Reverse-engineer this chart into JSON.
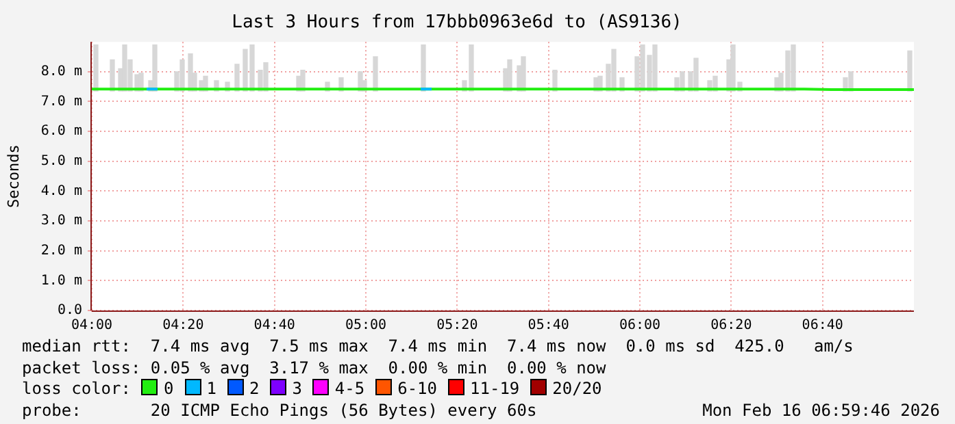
{
  "chart_data": {
    "type": "line",
    "title": "Last 3 Hours from 17bbb0963e6d to (AS9136)",
    "ylabel": "Seconds",
    "legend_title": "loss color:",
    "legend": "bottom",
    "grid": true,
    "marker": "none",
    "line_style": "solid",
    "xlim": [
      4,
      7
    ],
    "xticks": [
      {
        "value": 4,
        "label": "04:00"
      },
      {
        "value": 4.3333,
        "label": "04:20"
      },
      {
        "value": 4.6667,
        "label": "04:40"
      },
      {
        "value": 5,
        "label": "05:00"
      },
      {
        "value": 5.3333,
        "label": "05:20"
      },
      {
        "value": 5.6667,
        "label": "05:40"
      },
      {
        "value": 6,
        "label": "06:00"
      },
      {
        "value": 6.3333,
        "label": "06:20"
      },
      {
        "value": 6.6667,
        "label": "06:40"
      }
    ],
    "ylim": [
      0,
      9
    ],
    "yticks": [
      {
        "value": 0,
        "label": "0.0"
      },
      {
        "value": 1,
        "label": "1.0 m"
      },
      {
        "value": 2,
        "label": "2.0 m"
      },
      {
        "value": 3,
        "label": "3.0 m"
      },
      {
        "value": 4,
        "label": "4.0 m"
      },
      {
        "value": 5,
        "label": "5.0 m"
      },
      {
        "value": 6,
        "label": "6.0 m"
      },
      {
        "value": 7,
        "label": "7.0 m"
      },
      {
        "value": 8,
        "label": "8.0 m"
      }
    ],
    "series": [
      {
        "type": "bar",
        "color": "#d7d7d7",
        "x": [
          4.015,
          4.075,
          4.105,
          4.12,
          4.14,
          4.165,
          4.18,
          4.215,
          4.23,
          4.31,
          4.33,
          4.36,
          4.375,
          4.4,
          4.415,
          4.455,
          4.495,
          4.53,
          4.56,
          4.585,
          4.615,
          4.635,
          4.755,
          4.77,
          4.86,
          4.91,
          4.98,
          4.995,
          5.035,
          5.21,
          5.36,
          5.385,
          5.51,
          5.525,
          5.56,
          5.575,
          5.69,
          5.84,
          5.855,
          5.885,
          5.905,
          5.935,
          5.99,
          6.01,
          6.035,
          6.055,
          6.135,
          6.155,
          6.185,
          6.205,
          6.255,
          6.275,
          6.325,
          6.34,
          6.365,
          6.5,
          6.515,
          6.54,
          6.56,
          6.75,
          6.77,
          6.985
        ],
        "base": [
          7.35,
          7.35,
          7.35,
          7.35,
          7.35,
          7.35,
          7.35,
          7.35,
          7.35,
          7.35,
          7.35,
          7.35,
          7.35,
          7.35,
          7.35,
          7.35,
          7.35,
          7.35,
          7.35,
          7.35,
          7.35,
          7.35,
          7.35,
          7.35,
          7.35,
          7.35,
          7.35,
          7.35,
          7.35,
          7.35,
          7.35,
          7.35,
          7.35,
          7.35,
          7.35,
          7.35,
          7.35,
          7.35,
          7.35,
          7.35,
          7.35,
          7.35,
          7.35,
          7.35,
          7.35,
          7.35,
          7.35,
          7.35,
          7.35,
          7.35,
          7.35,
          7.35,
          7.35,
          7.35,
          7.35,
          7.35,
          7.35,
          7.35,
          7.35,
          7.35,
          7.35,
          7.35
        ],
        "values": [
          1.55,
          1.05,
          0.75,
          1.55,
          1.05,
          0.55,
          0.6,
          0.35,
          1.55,
          0.65,
          1.05,
          1.25,
          0.6,
          0.35,
          0.5,
          0.35,
          0.3,
          0.9,
          1.4,
          1.55,
          0.7,
          0.95,
          0.5,
          0.7,
          0.3,
          0.45,
          0.65,
          0.35,
          1.15,
          1.55,
          0.35,
          1.55,
          0.75,
          1.05,
          0.85,
          1.15,
          0.7,
          0.45,
          0.5,
          0.9,
          1.4,
          0.45,
          1.15,
          1.55,
          1.2,
          1.55,
          0.45,
          0.65,
          0.65,
          1.1,
          0.35,
          0.5,
          1.05,
          1.55,
          0.3,
          0.45,
          0.6,
          1.35,
          1.55,
          0.45,
          0.65,
          1.35
        ]
      },
      {
        "name": "0",
        "color": "#22ee11",
        "x": [
          4,
          4.1,
          4.2,
          4.3,
          4.4,
          4.5,
          4.6,
          4.7,
          4.8,
          4.9,
          5,
          5.1,
          5.2,
          5.3,
          5.4,
          5.5,
          5.6,
          5.7,
          5.8,
          5.9,
          6,
          6.1,
          6.2,
          6.3,
          6.4,
          6.5,
          6.6,
          6.7,
          6.8,
          6.9,
          7
        ],
        "values": [
          7.42,
          7.42,
          7.42,
          7.42,
          7.42,
          7.42,
          7.42,
          7.42,
          7.42,
          7.42,
          7.42,
          7.42,
          7.42,
          7.42,
          7.42,
          7.42,
          7.42,
          7.42,
          7.42,
          7.42,
          7.42,
          7.42,
          7.42,
          7.42,
          7.42,
          7.42,
          7.42,
          7.4,
          7.4,
          7.4,
          7.4
        ]
      },
      {
        "name": "1",
        "color": "#00b8ff",
        "x": [
          4.2,
          4.24,
          4.7,
          5.2,
          5.24
        ],
        "values": [
          7.42,
          7.42,
          null,
          7.42,
          7.42
        ]
      },
      {
        "name": "2",
        "color": "#0059ff"
      },
      {
        "name": "3",
        "color": "#7e00ff"
      },
      {
        "name": "4-5",
        "color": "#ff00ff"
      },
      {
        "name": "6-10",
        "color": "#ff5500"
      },
      {
        "name": "11-19",
        "color": "#ff0000"
      },
      {
        "name": "20/20",
        "color": "#a10000"
      }
    ],
    "annotations": [
      "median rtt:  7.4 ms avg  7.5 ms max  7.4 ms min  7.4 ms now  0.0 ms sd  425.0   am/s",
      "packet loss: 0.05 % avg  3.17 % max  0.00 % min  0.00 % now",
      "probe:       20 ICMP Echo Pings (56 Bytes) every 60s",
      "Mon Feb 16 06:59:46 2026"
    ]
  }
}
